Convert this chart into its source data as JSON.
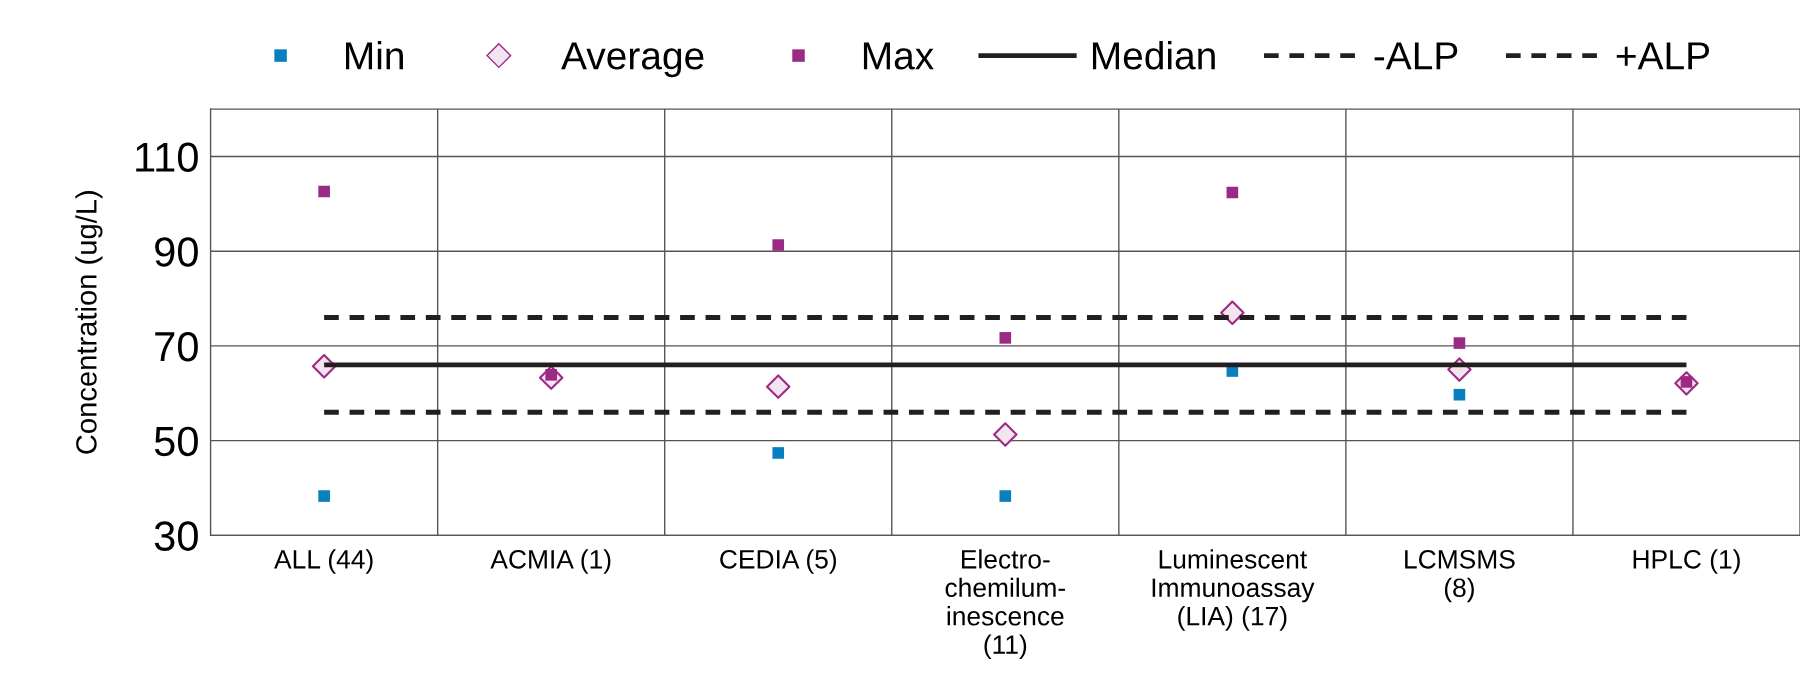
{
  "chart_data": {
    "type": "scatter",
    "ylabel": "Concentration (ug/L)",
    "categories": [
      "ALL (44)",
      "ACMIA (1)",
      "CEDIA (5)",
      "Electro-\nchemilum-\ninescence\n(11)",
      "Luminescent\nImmunoassay\n(LIA) (17)",
      "LCMSMS\n(8)",
      "HPLC (1)"
    ],
    "series": [
      {
        "name": "Min",
        "marker": "square",
        "color": "#0a7fc0",
        "values": [
          38.3,
          null,
          47.4,
          38.3,
          64.7,
          59.7,
          null
        ]
      },
      {
        "name": "Average",
        "marker": "diamond",
        "color": "#9c2a85",
        "values": [
          65.7,
          63.3,
          61.4,
          51.3,
          77,
          65,
          62.1
        ]
      },
      {
        "name": "Max",
        "marker": "square",
        "color": "#9c2a85",
        "values": [
          102.6,
          63.9,
          91.3,
          71.7,
          102.4,
          70.6,
          62.4
        ]
      },
      {
        "name": "Median",
        "type": "line",
        "line_style": "solid",
        "color": "#231f20",
        "values": [
          66,
          66,
          66,
          66,
          66,
          66,
          66
        ]
      },
      {
        "name": "-ALP",
        "type": "line",
        "line_style": "dashed",
        "color": "#231f20",
        "values": [
          56,
          56,
          56,
          56,
          56,
          56,
          56
        ]
      },
      {
        "name": "+ALP",
        "type": "line",
        "line_style": "dashed",
        "color": "#231f20",
        "values": [
          76,
          76,
          76,
          76,
          76,
          76,
          76
        ]
      }
    ],
    "ylim": [
      30,
      120
    ],
    "yticks": [
      30,
      50,
      70,
      90,
      110
    ],
    "grid": true,
    "legend": "top"
  }
}
